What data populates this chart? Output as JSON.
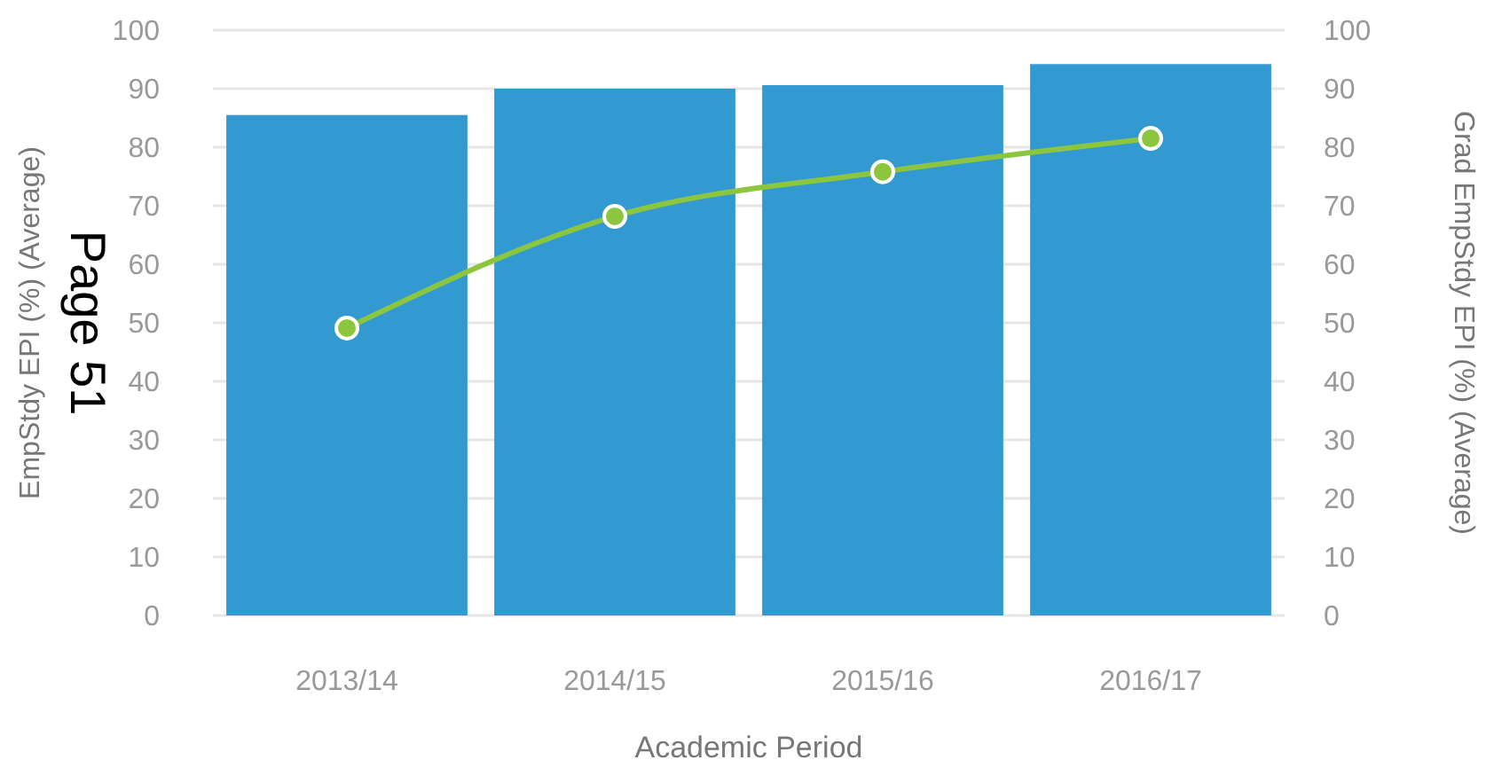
{
  "chart_data": {
    "type": "bar",
    "categories": [
      "2013/14",
      "2014/15",
      "2015/16",
      "2016/17"
    ],
    "series": [
      {
        "color": "#3399d1",
        "values": [
          85.5,
          90,
          90.6,
          94.2
        ]
      },
      {
        "type": "line",
        "axis": "y2",
        "color": "#8cc63f",
        "values": [
          49.1,
          68.2,
          75.8,
          81.5
        ],
        "marker": "circle"
      }
    ],
    "xlabel": "Academic Period",
    "ylabel": "EmpStdy EPI (%) (Average)",
    "y2label": "Grad EmpStdy EPI (%) (Average)",
    "ylim": [
      0,
      100
    ],
    "yticks": [
      0,
      10,
      20,
      30,
      40,
      50,
      60,
      70,
      80,
      90,
      100
    ],
    "y2lim": [
      0,
      100
    ],
    "y2ticks": [
      0,
      10,
      20,
      30,
      40,
      50,
      60,
      70,
      80,
      90,
      100
    ],
    "grid": "y",
    "annotations": [
      "Page 51"
    ]
  }
}
